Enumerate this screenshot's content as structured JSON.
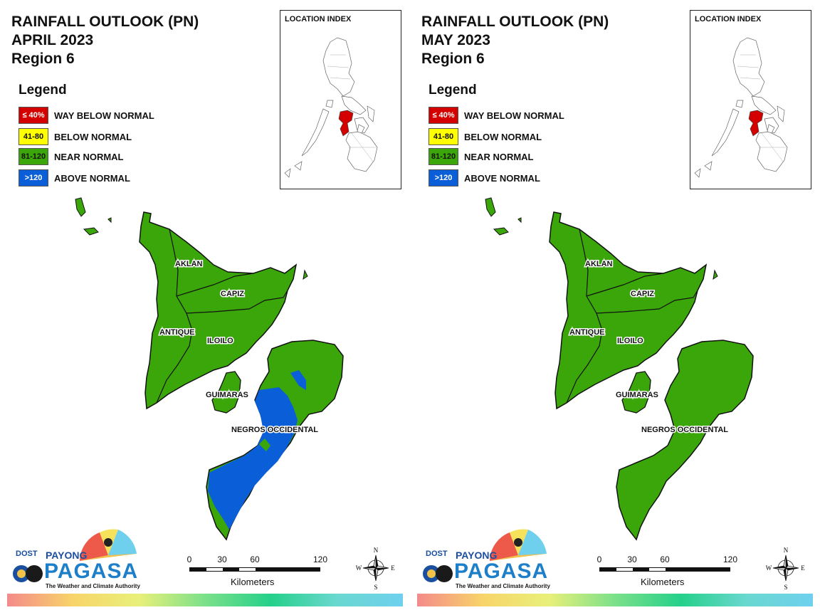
{
  "panels": [
    {
      "title_line1": "RAINFALL OUTLOOK (PN)",
      "title_line2": "APRIL 2023",
      "title_line3": "Region 6",
      "legend_title": "Legend",
      "legend": [
        {
          "code": "≤ 40%",
          "label": "WAY BELOW NORMAL",
          "color": "#d40000",
          "text_color": "#ffffff"
        },
        {
          "code": "41-80",
          "label": "BELOW NORMAL",
          "color": "#ffff00",
          "text_color": "#111111"
        },
        {
          "code": "81-120",
          "label": "NEAR NORMAL",
          "color": "#3aa60a",
          "text_color": "#111111"
        },
        {
          "code": ">120",
          "label": "ABOVE NORMAL",
          "color": "#0a5fd8",
          "text_color": "#ffffff"
        }
      ],
      "location_index_title": "LOCATION INDEX",
      "provinces": [
        "AKLAN",
        "CAPIZ",
        "ANTIQUE",
        "ILOILO",
        "GUIMARAS",
        "NEGROS OCCIDENTAL"
      ],
      "negros_above_normal": true,
      "scale": {
        "ticks": [
          "0",
          "30",
          "60",
          "120"
        ],
        "unit": "Kilometers"
      },
      "compass": {
        "n": "N",
        "s": "S",
        "e": "E",
        "w": "W"
      },
      "logo": {
        "dost": "DOST",
        "payong": "PAYONG",
        "pagasa": "PAGASA",
        "tagline": "The Weather and Climate Authority"
      }
    },
    {
      "title_line1": "RAINFALL OUTLOOK (PN)",
      "title_line2": "MAY 2023",
      "title_line3": "Region 6",
      "legend_title": "Legend",
      "legend": [
        {
          "code": "≤ 40%",
          "label": "WAY BELOW NORMAL",
          "color": "#d40000",
          "text_color": "#ffffff"
        },
        {
          "code": "41-80",
          "label": "BELOW NORMAL",
          "color": "#ffff00",
          "text_color": "#111111"
        },
        {
          "code": "81-120",
          "label": "NEAR NORMAL",
          "color": "#3aa60a",
          "text_color": "#111111"
        },
        {
          "code": ">120",
          "label": "ABOVE NORMAL",
          "color": "#0a5fd8",
          "text_color": "#ffffff"
        }
      ],
      "location_index_title": "LOCATION INDEX",
      "provinces": [
        "AKLAN",
        "CAPIZ",
        "ANTIQUE",
        "ILOILO",
        "GUIMARAS",
        "NEGROS OCCIDENTAL"
      ],
      "negros_above_normal": false,
      "scale": {
        "ticks": [
          "0",
          "30",
          "60",
          "120"
        ],
        "unit": "Kilometers"
      },
      "compass": {
        "n": "N",
        "s": "S",
        "e": "E",
        "w": "W"
      },
      "logo": {
        "dost": "DOST",
        "payong": "PAYONG",
        "pagasa": "PAGASA",
        "tagline": "The Weather and Climate Authority"
      }
    }
  ]
}
